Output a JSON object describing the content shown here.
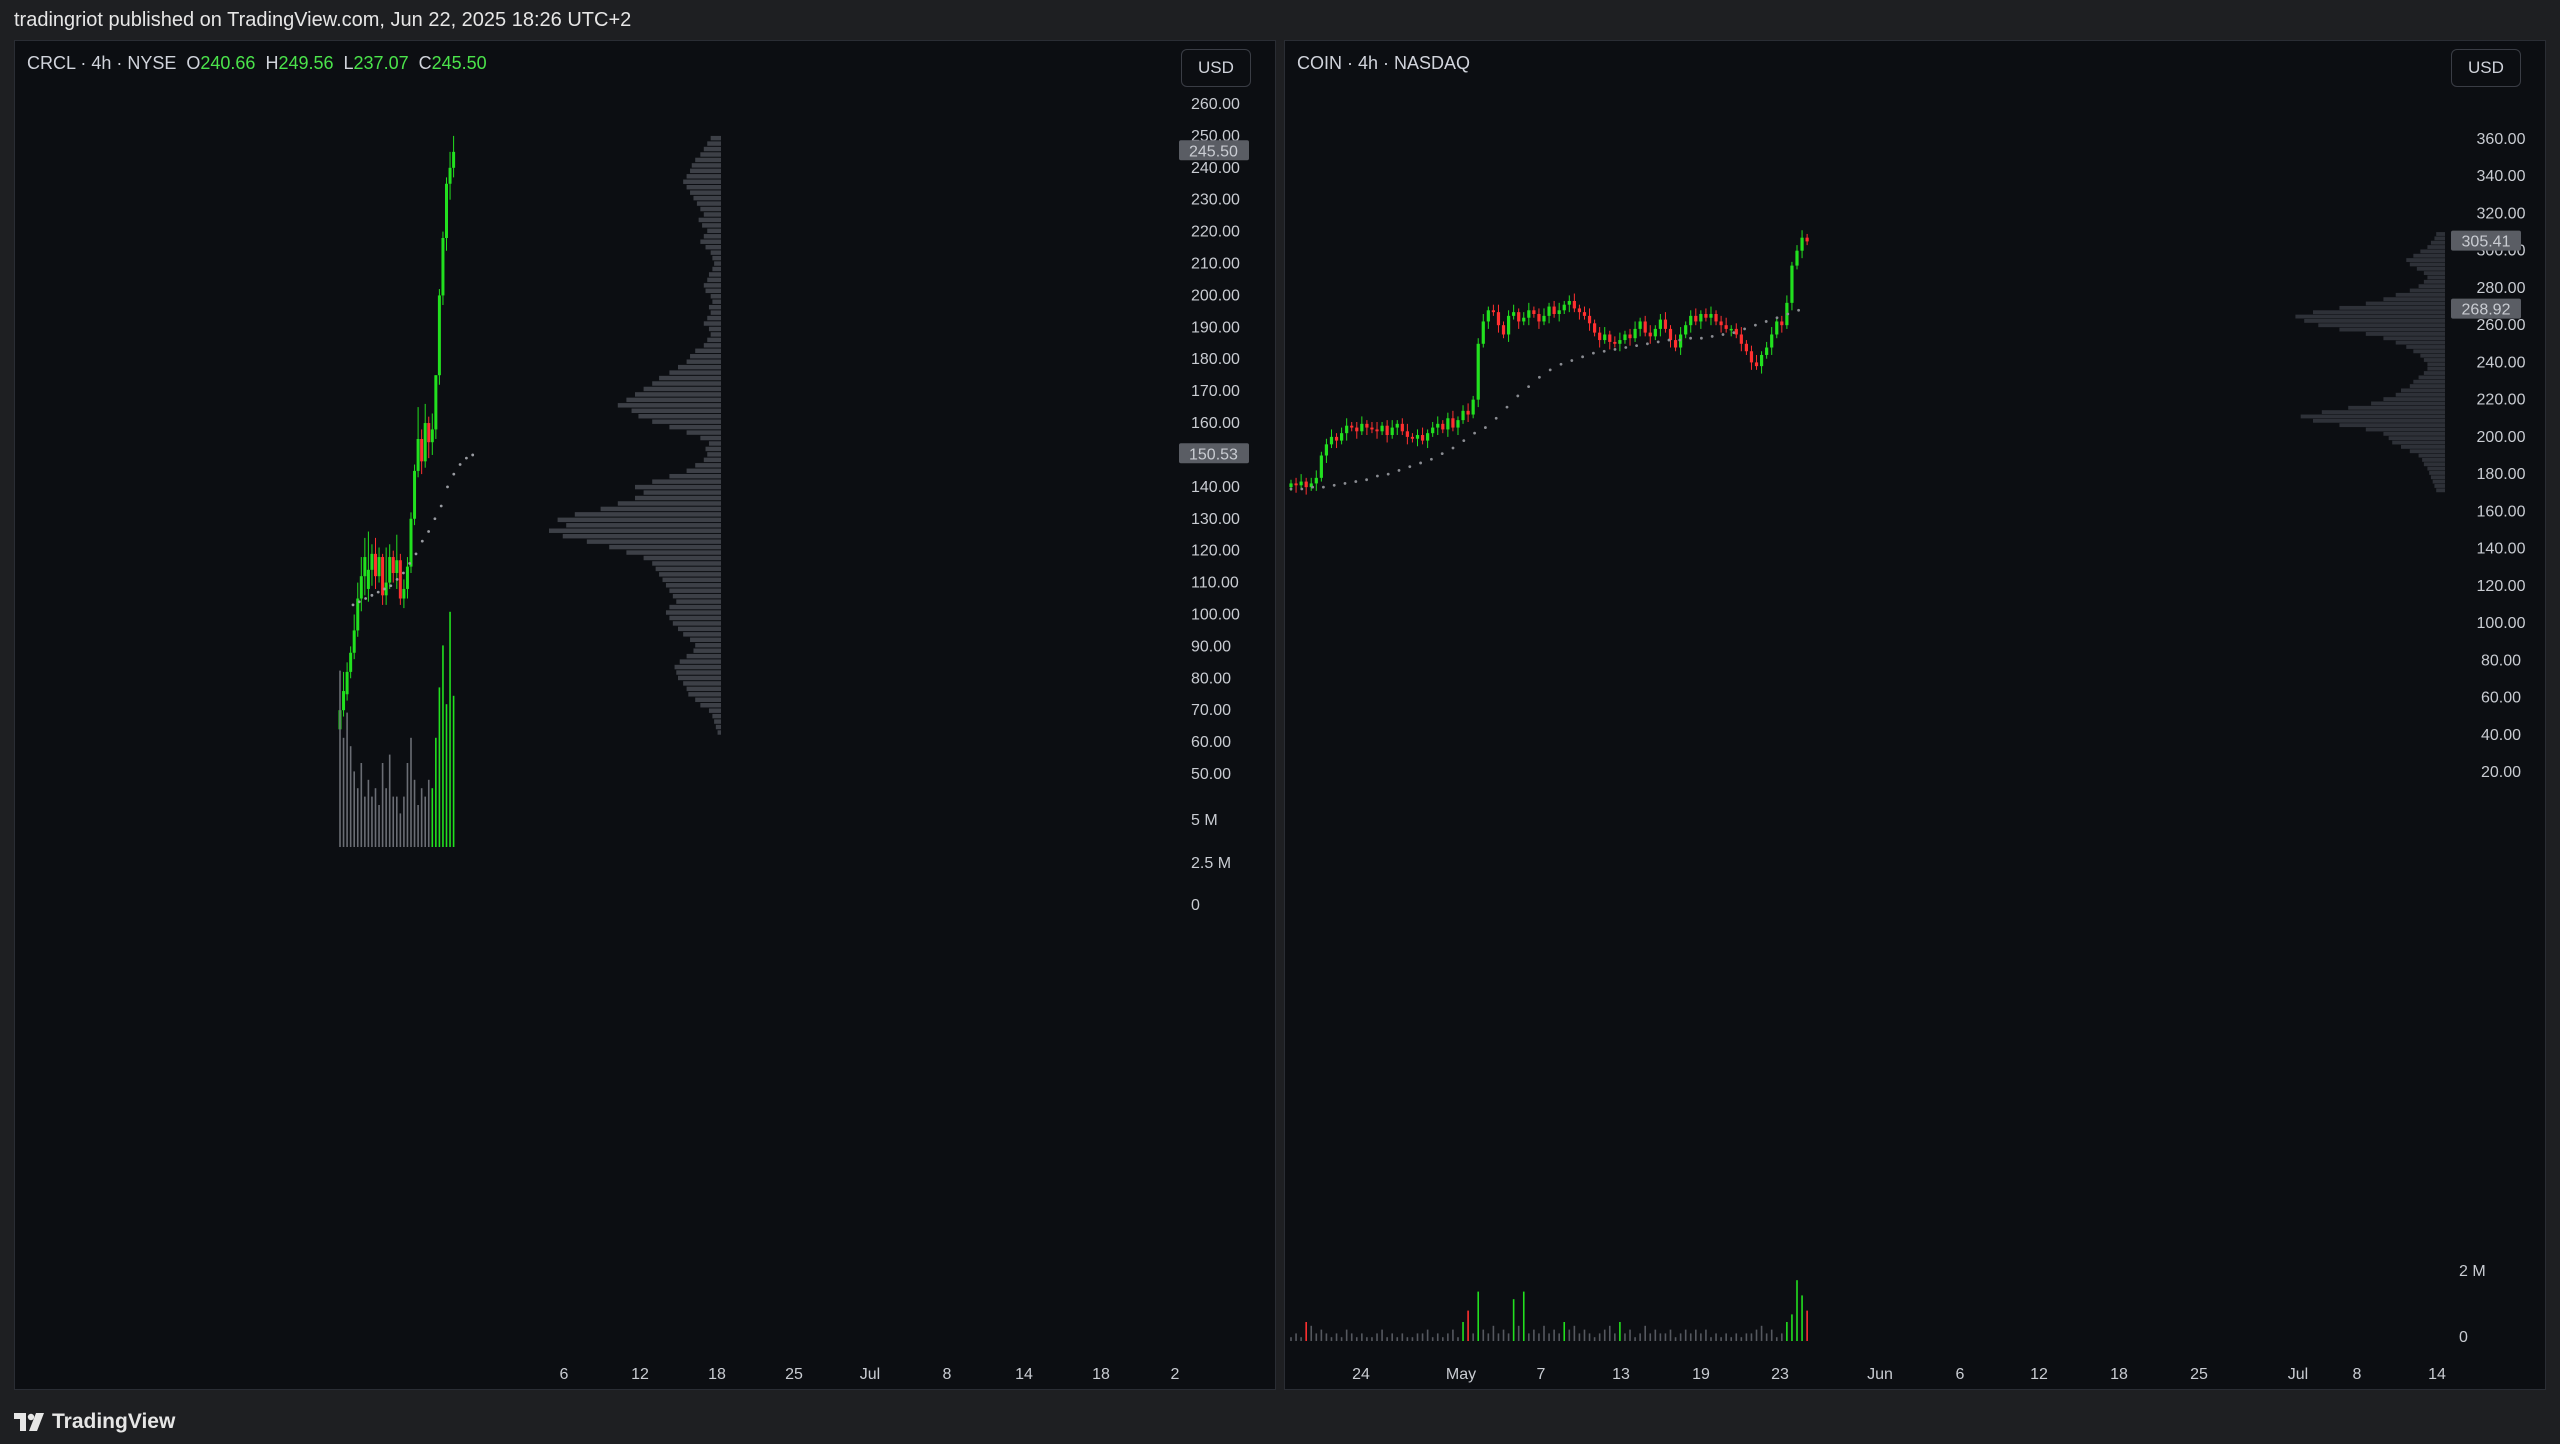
{
  "header": {
    "publisher_text": "tradingriot published on TradingView.com, Jun 22, 2025 18:26 UTC+2"
  },
  "footer": {
    "brand": "TradingView"
  },
  "colors": {
    "up": "#22e01f",
    "down": "#ff3030",
    "background": "#0c0e12",
    "profile": "#3d4047",
    "label_bg": "#5a5d64"
  },
  "chart_data": [
    {
      "type": "candlestick",
      "symbol_text": "CRCL · 4h · NYSE",
      "ohlc": {
        "o_label": "O",
        "o": "240.66",
        "h_label": "H",
        "h": "249.56",
        "l_label": "L",
        "l": "237.07",
        "c_label": "C",
        "c": "245.50"
      },
      "currency": "USD",
      "ylim": [
        45,
        265
      ],
      "yticks": [
        "260.00",
        "250.00",
        "240.00",
        "230.00",
        "220.00",
        "210.00",
        "200.00",
        "190.00",
        "180.00",
        "170.00",
        "160.00",
        "150.00",
        "140.00",
        "130.00",
        "120.00",
        "110.00",
        "100.00",
        "90.00",
        "80.00",
        "70.00",
        "60.00",
        "50.00"
      ],
      "price_labels": [
        "245.50",
        "150.53"
      ],
      "volume_ticks": [
        "5 M",
        "2.5 M",
        "0"
      ],
      "xticks": [
        "6",
        "12",
        "18",
        "25",
        "Jul",
        "8",
        "14",
        "18",
        "2"
      ],
      "candles": [
        [
          64,
          70,
          61,
          72
        ],
        [
          70,
          76,
          68,
          82
        ],
        [
          75,
          82,
          73,
          85
        ],
        [
          82,
          88,
          80,
          90
        ],
        [
          88,
          95,
          86,
          100
        ],
        [
          95,
          105,
          93,
          110
        ],
        [
          105,
          112,
          101,
          118
        ],
        [
          112,
          118,
          106,
          124
        ],
        [
          108,
          114,
          104,
          126
        ],
        [
          114,
          119,
          109,
          122
        ],
        [
          119,
          112,
          108,
          124
        ],
        [
          112,
          118,
          110,
          121
        ],
        [
          118,
          106,
          103,
          119
        ],
        [
          106,
          110,
          103,
          121
        ],
        [
          110,
          118,
          108,
          122
        ],
        [
          118,
          113,
          110,
          120
        ],
        [
          113,
          117,
          108,
          125
        ],
        [
          117,
          105,
          103,
          119
        ],
        [
          105,
          108,
          102,
          111
        ],
        [
          108,
          115,
          105,
          118
        ],
        [
          115,
          130,
          113,
          132
        ],
        [
          130,
          145,
          128,
          147
        ],
        [
          145,
          155,
          143,
          165
        ],
        [
          155,
          148,
          144,
          158
        ],
        [
          148,
          160,
          146,
          166
        ],
        [
          160,
          154,
          149,
          162
        ],
        [
          154,
          158,
          150,
          163
        ],
        [
          158,
          175,
          155,
          175
        ],
        [
          175,
          200,
          172,
          202
        ],
        [
          200,
          218,
          197,
          220
        ],
        [
          218,
          235,
          214,
          237
        ],
        [
          235,
          240,
          230,
          245
        ],
        [
          240,
          245,
          237,
          250
        ]
      ],
      "volumes": [
        2.1,
        1.3,
        1.6,
        1.2,
        0.9,
        0.7,
        1.0,
        0.6,
        0.8,
        0.6,
        0.7,
        0.5,
        1.0,
        0.7,
        1.1,
        0.6,
        0.6,
        0.4,
        0.6,
        1.0,
        1.3,
        0.8,
        0.5,
        0.7,
        0.6,
        0.8,
        0.7,
        1.3,
        1.9,
        2.4,
        1.7,
        2.8,
        1.8
      ],
      "vwap": [
        103,
        104,
        105,
        106,
        107,
        108,
        109,
        111,
        113,
        116,
        119,
        123,
        126,
        130,
        134,
        140,
        144,
        147,
        149,
        150
      ],
      "profile_weights": [
        0.02,
        0.03,
        0.04,
        0.05,
        0.07,
        0.12,
        0.15,
        0.19,
        0.2,
        0.22,
        0.25,
        0.26,
        0.27,
        0.24,
        0.2,
        0.16,
        0.15,
        0.18,
        0.22,
        0.25,
        0.28,
        0.3,
        0.32,
        0.3,
        0.26,
        0.28,
        0.3,
        0.32,
        0.34,
        0.36,
        0.38,
        0.4,
        0.45,
        0.55,
        0.65,
        0.78,
        0.92,
        1.0,
        0.9,
        0.95,
        0.85,
        0.7,
        0.6,
        0.5,
        0.45,
        0.5,
        0.4,
        0.3,
        0.2,
        0.15,
        0.1,
        0.08,
        0.09,
        0.07,
        0.12,
        0.2,
        0.3,
        0.4,
        0.48,
        0.52,
        0.6,
        0.55,
        0.5,
        0.45,
        0.4,
        0.36,
        0.3,
        0.25,
        0.2,
        0.18,
        0.15,
        0.1,
        0.08,
        0.06,
        0.07,
        0.1,
        0.08,
        0.06,
        0.07,
        0.05,
        0.06,
        0.09,
        0.1,
        0.08,
        0.07,
        0.05,
        0.04,
        0.05,
        0.06,
        0.09,
        0.12,
        0.1,
        0.08,
        0.11,
        0.13,
        0.1,
        0.12,
        0.14,
        0.16,
        0.18,
        0.2,
        0.22,
        0.2,
        0.18,
        0.17,
        0.15,
        0.12,
        0.1,
        0.08,
        0.06
      ],
      "profile_range": [
        62,
        250
      ]
    },
    {
      "type": "candlestick",
      "symbol_text": "COIN · 4h · NASDAQ",
      "currency": "USD",
      "ylim": [
        0,
        375
      ],
      "yticks": [
        "360.00",
        "340.00",
        "320.00",
        "300.00",
        "280.00",
        "260.00",
        "240.00",
        "220.00",
        "200.00",
        "180.00",
        "160.00",
        "140.00",
        "120.00",
        "100.00",
        "80.00",
        "60.00",
        "40.00",
        "20.00"
      ],
      "price_labels": [
        "305.41",
        "268.92"
      ],
      "volume_ticks": [
        "2 M",
        "0"
      ],
      "xticks": [
        "24",
        "May",
        "7",
        "13",
        "19",
        "23",
        "Jun",
        "6",
        "12",
        "18",
        "25",
        "Jul",
        "8",
        "14"
      ],
      "closes": [
        175,
        174,
        176,
        173,
        175,
        178,
        190,
        196,
        200,
        198,
        202,
        206,
        205,
        203,
        207,
        205,
        204,
        203,
        206,
        201,
        205,
        207,
        203,
        200,
        199,
        201,
        198,
        202,
        205,
        207,
        204,
        210,
        205,
        209,
        214,
        212,
        220,
        250,
        262,
        268,
        267,
        260,
        255,
        265,
        267,
        262,
        264,
        268,
        266,
        262,
        265,
        270,
        266,
        268,
        271,
        273,
        269,
        267,
        265,
        261,
        256,
        252,
        255,
        251,
        250,
        252,
        255,
        253,
        258,
        262,
        256,
        254,
        258,
        263,
        258,
        252,
        248,
        255,
        260,
        265,
        262,
        266,
        264,
        266,
        262,
        260,
        258,
        258,
        255,
        250,
        246,
        240,
        238,
        244,
        248,
        255,
        262,
        260,
        272,
        292,
        300,
        307,
        305
      ],
      "volumes": [
        0.1,
        0.2,
        0.1,
        0.5,
        0.4,
        0.2,
        0.3,
        0.2,
        0.1,
        0.2,
        0.1,
        0.3,
        0.2,
        0.1,
        0.2,
        0.1,
        0.1,
        0.2,
        0.3,
        0.1,
        0.2,
        0.1,
        0.2,
        0.1,
        0.1,
        0.2,
        0.2,
        0.3,
        0.1,
        0.2,
        0.1,
        0.2,
        0.3,
        0.1,
        0.5,
        0.8,
        0.2,
        1.3,
        0.3,
        0.2,
        0.4,
        0.2,
        0.3,
        0.2,
        1.1,
        0.4,
        1.3,
        0.2,
        0.3,
        0.2,
        0.4,
        0.2,
        0.3,
        0.2,
        0.5,
        0.3,
        0.4,
        0.2,
        0.3,
        0.2,
        0.1,
        0.2,
        0.3,
        0.4,
        0.2,
        0.5,
        0.2,
        0.3,
        0.1,
        0.2,
        0.4,
        0.2,
        0.3,
        0.2,
        0.2,
        0.3,
        0.1,
        0.2,
        0.3,
        0.2,
        0.3,
        0.2,
        0.3,
        0.1,
        0.2,
        0.1,
        0.2,
        0.1,
        0.2,
        0.1,
        0.2,
        0.2,
        0.3,
        0.4,
        0.2,
        0.3,
        0.1,
        0.2,
        0.5,
        0.7,
        1.6,
        1.2,
        0.8
      ],
      "vwap": [
        172,
        172,
        173,
        173,
        174,
        175,
        176,
        177,
        179,
        180,
        182,
        184,
        186,
        188,
        191,
        194,
        198,
        202,
        205,
        210,
        216,
        222,
        227,
        232,
        236,
        239,
        241,
        243,
        245,
        246,
        247,
        248,
        249,
        250,
        251,
        252,
        252,
        253,
        253,
        254,
        255,
        256,
        258,
        260,
        262,
        264,
        266,
        268
      ],
      "profile_weights": [
        0.05,
        0.06,
        0.07,
        0.08,
        0.09,
        0.1,
        0.12,
        0.13,
        0.15,
        0.2,
        0.25,
        0.3,
        0.32,
        0.35,
        0.45,
        0.6,
        0.75,
        0.82,
        0.7,
        0.55,
        0.42,
        0.35,
        0.28,
        0.25,
        0.2,
        0.18,
        0.15,
        0.12,
        0.1,
        0.1,
        0.12,
        0.14,
        0.18,
        0.22,
        0.28,
        0.35,
        0.45,
        0.6,
        0.72,
        0.8,
        0.85,
        0.75,
        0.6,
        0.45,
        0.35,
        0.28,
        0.2,
        0.15,
        0.12,
        0.1,
        0.12,
        0.16,
        0.2,
        0.22,
        0.18,
        0.14,
        0.1,
        0.08,
        0.06,
        0.05
      ],
      "profile_range": [
        170,
        310
      ]
    }
  ]
}
